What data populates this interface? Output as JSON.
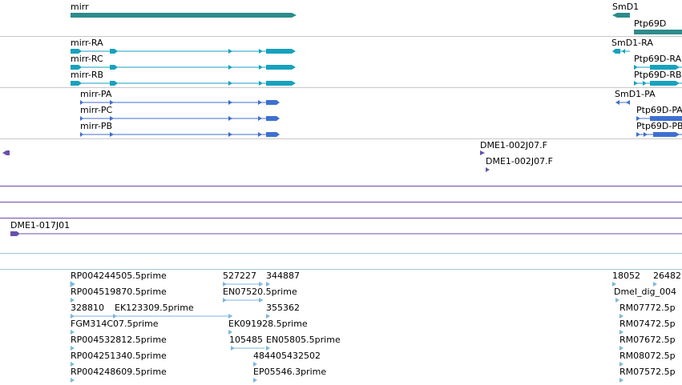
{
  "colors": {
    "gene": "#2e8b8b",
    "transcript": "#17a2bd",
    "protein": "#3f6fd0",
    "est": "#6a4fb0",
    "cdna": "#7fb6db",
    "track_separator_gray": "#c8c8c8",
    "track_separator_blue": "#9fc7dd",
    "track_separator_purple": "#6a4fb0"
  },
  "genes": [
    {
      "label": "mirr"
    },
    {
      "label": "SmD1"
    },
    {
      "label": "Ptp69D"
    }
  ],
  "transcripts": [
    {
      "label": "mirr-RA"
    },
    {
      "label": "mirr-RC"
    },
    {
      "label": "mirr-RB"
    },
    {
      "label": "SmD1-RA"
    },
    {
      "label": "Ptp69D-RA"
    },
    {
      "label": "Ptp69D-RB"
    }
  ],
  "proteins": [
    {
      "label": "mirr-PA"
    },
    {
      "label": "mirr-PC"
    },
    {
      "label": "mirr-PB"
    },
    {
      "label": "SmD1-PA"
    },
    {
      "label": "Ptp69D-PA"
    },
    {
      "label": "Ptp69D-PB"
    }
  ],
  "ests": [
    {
      "label": "DME1-002J07.F"
    },
    {
      "label": "DME1-002J07.F"
    },
    {
      "label": "DME1-017J01"
    }
  ],
  "cdna": [
    "RP004244505.5prime",
    "527227",
    "344887",
    "18052",
    "26482",
    "RP004519870.5prime",
    "EN07520.5prime",
    "Dmel_dig_004",
    "328810",
    "EK123309.5prime",
    "355362",
    "RM07772.5p",
    "FGM314C07.5prime",
    "EK091928.5prime",
    "RM07472.5p",
    "RP004532812.5prime",
    "105485",
    "EN05805.5prime",
    "RM07672.5p",
    "RP004251340.5prime",
    "484405432502",
    "RM08072.5p",
    "RP004248609.5prime",
    "EP05546.3prime",
    "RM07572.5p"
  ]
}
